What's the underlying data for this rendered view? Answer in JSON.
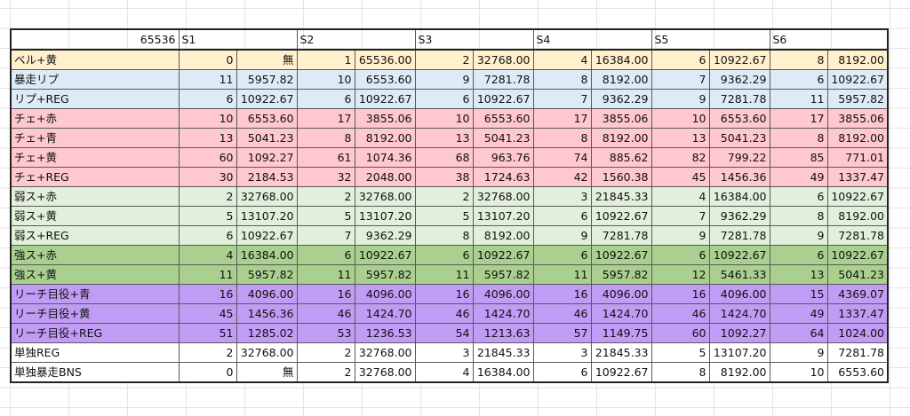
{
  "header": {
    "corner": "65536",
    "settings": [
      "S1",
      "S2",
      "S3",
      "S4",
      "S5",
      "S6"
    ]
  },
  "rows": [
    {
      "label": "ベル+黄",
      "style": "bell",
      "cells": [
        [
          "0",
          "無"
        ],
        [
          "1",
          "65536.00"
        ],
        [
          "2",
          "32768.00"
        ],
        [
          "4",
          "16384.00"
        ],
        [
          "6",
          "10922.67"
        ],
        [
          "8",
          "8192.00"
        ]
      ]
    },
    {
      "label": "暴走リプ",
      "style": "rep",
      "cells": [
        [
          "11",
          "5957.82"
        ],
        [
          "10",
          "6553.60"
        ],
        [
          "9",
          "7281.78"
        ],
        [
          "8",
          "8192.00"
        ],
        [
          "7",
          "9362.29"
        ],
        [
          "6",
          "10922.67"
        ]
      ]
    },
    {
      "label": "リプ+REG",
      "style": "rep",
      "cells": [
        [
          "6",
          "10922.67"
        ],
        [
          "6",
          "10922.67"
        ],
        [
          "6",
          "10922.67"
        ],
        [
          "7",
          "9362.29"
        ],
        [
          "9",
          "7281.78"
        ],
        [
          "11",
          "5957.82"
        ]
      ]
    },
    {
      "label": "チェ+赤",
      "style": "che",
      "cells": [
        [
          "10",
          "6553.60"
        ],
        [
          "17",
          "3855.06"
        ],
        [
          "10",
          "6553.60"
        ],
        [
          "17",
          "3855.06"
        ],
        [
          "10",
          "6553.60"
        ],
        [
          "17",
          "3855.06"
        ]
      ]
    },
    {
      "label": "チェ+青",
      "style": "che",
      "cells": [
        [
          "13",
          "5041.23"
        ],
        [
          "8",
          "8192.00"
        ],
        [
          "13",
          "5041.23"
        ],
        [
          "8",
          "8192.00"
        ],
        [
          "13",
          "5041.23"
        ],
        [
          "8",
          "8192.00"
        ]
      ]
    },
    {
      "label": "チェ+黄",
      "style": "che",
      "cells": [
        [
          "60",
          "1092.27"
        ],
        [
          "61",
          "1074.36"
        ],
        [
          "68",
          "963.76"
        ],
        [
          "74",
          "885.62"
        ],
        [
          "82",
          "799.22"
        ],
        [
          "85",
          "771.01"
        ]
      ]
    },
    {
      "label": "チェ+REG",
      "style": "che",
      "cells": [
        [
          "30",
          "2184.53"
        ],
        [
          "32",
          "2048.00"
        ],
        [
          "38",
          "1724.63"
        ],
        [
          "42",
          "1560.38"
        ],
        [
          "45",
          "1456.36"
        ],
        [
          "49",
          "1337.47"
        ]
      ]
    },
    {
      "label": "弱ス+赤",
      "style": "weak",
      "cells": [
        [
          "2",
          "32768.00"
        ],
        [
          "2",
          "32768.00"
        ],
        [
          "2",
          "32768.00"
        ],
        [
          "3",
          "21845.33"
        ],
        [
          "4",
          "16384.00"
        ],
        [
          "6",
          "10922.67"
        ]
      ]
    },
    {
      "label": "弱ス+黄",
      "style": "weak",
      "cells": [
        [
          "5",
          "13107.20"
        ],
        [
          "5",
          "13107.20"
        ],
        [
          "5",
          "13107.20"
        ],
        [
          "6",
          "10922.67"
        ],
        [
          "7",
          "9362.29"
        ],
        [
          "8",
          "8192.00"
        ]
      ]
    },
    {
      "label": "弱ス+REG",
      "style": "weak",
      "cells": [
        [
          "6",
          "10922.67"
        ],
        [
          "7",
          "9362.29"
        ],
        [
          "8",
          "8192.00"
        ],
        [
          "9",
          "7281.78"
        ],
        [
          "9",
          "7281.78"
        ],
        [
          "9",
          "7281.78"
        ]
      ]
    },
    {
      "label": "強ス+赤",
      "style": "strong",
      "cells": [
        [
          "4",
          "16384.00"
        ],
        [
          "6",
          "10922.67"
        ],
        [
          "6",
          "10922.67"
        ],
        [
          "6",
          "10922.67"
        ],
        [
          "6",
          "10922.67"
        ],
        [
          "6",
          "10922.67"
        ]
      ]
    },
    {
      "label": "強ス+黄",
      "style": "strong",
      "cells": [
        [
          "11",
          "5957.82"
        ],
        [
          "11",
          "5957.82"
        ],
        [
          "11",
          "5957.82"
        ],
        [
          "11",
          "5957.82"
        ],
        [
          "12",
          "5461.33"
        ],
        [
          "13",
          "5041.23"
        ]
      ]
    },
    {
      "label": "リーチ目役+青",
      "style": "reach",
      "cells": [
        [
          "16",
          "4096.00"
        ],
        [
          "16",
          "4096.00"
        ],
        [
          "16",
          "4096.00"
        ],
        [
          "16",
          "4096.00"
        ],
        [
          "16",
          "4096.00"
        ],
        [
          "15",
          "4369.07"
        ]
      ]
    },
    {
      "label": "リーチ目役+黄",
      "style": "reach",
      "cells": [
        [
          "45",
          "1456.36"
        ],
        [
          "46",
          "1424.70"
        ],
        [
          "46",
          "1424.70"
        ],
        [
          "46",
          "1424.70"
        ],
        [
          "46",
          "1424.70"
        ],
        [
          "49",
          "1337.47"
        ]
      ]
    },
    {
      "label": "リーチ目役+REG",
      "style": "reach",
      "cells": [
        [
          "51",
          "1285.02"
        ],
        [
          "53",
          "1236.53"
        ],
        [
          "54",
          "1213.63"
        ],
        [
          "57",
          "1149.75"
        ],
        [
          "60",
          "1092.27"
        ],
        [
          "64",
          "1024.00"
        ]
      ]
    },
    {
      "label": "単独REG",
      "style": "plain",
      "cells": [
        [
          "2",
          "32768.00"
        ],
        [
          "2",
          "32768.00"
        ],
        [
          "3",
          "21845.33"
        ],
        [
          "3",
          "21845.33"
        ],
        [
          "5",
          "13107.20"
        ],
        [
          "9",
          "7281.78"
        ]
      ]
    },
    {
      "label": "単独暴走BNS",
      "style": "plain",
      "cells": [
        [
          "0",
          "無"
        ],
        [
          "2",
          "32768.00"
        ],
        [
          "4",
          "16384.00"
        ],
        [
          "6",
          "10922.67"
        ],
        [
          "8",
          "8192.00"
        ],
        [
          "10",
          "6553.60"
        ]
      ]
    }
  ],
  "colors": {
    "bell": "#fff1cc",
    "replay": "#ddebf7",
    "cherry": "#ffc7ce",
    "weak_suika": "#e2efda",
    "strong_suika": "#a9d08e",
    "reach": "#c09cf4"
  }
}
